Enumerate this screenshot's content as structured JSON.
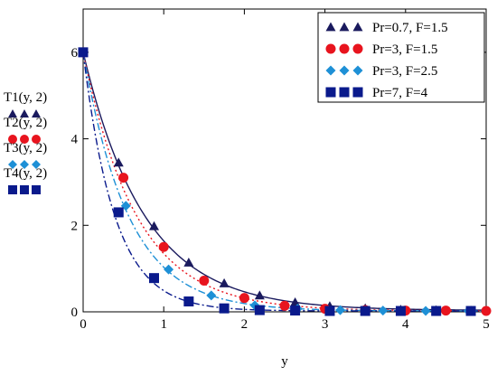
{
  "chart_data": {
    "type": "line",
    "xlabel": "y",
    "xlim": [
      0,
      5
    ],
    "ylim": [
      0,
      7
    ],
    "xticks": [
      "0",
      "1",
      "2",
      "3",
      "4",
      "5"
    ],
    "yticks": [
      "0",
      "2",
      "4",
      "6"
    ],
    "grid": false,
    "legend_position": "top-right",
    "series": [
      {
        "name": "Pr=0.7, F=1.5",
        "axis_label": "T1(y, 2)",
        "color": "#1a1a5e",
        "marker": "triangle",
        "line": "solid",
        "x": [
          0.0,
          0.44,
          0.88,
          1.31,
          1.75,
          2.19,
          2.63,
          3.06,
          3.5,
          3.94,
          4.38,
          4.81
        ],
        "y": [
          6.0,
          3.45,
          1.98,
          1.14,
          0.66,
          0.38,
          0.22,
          0.13,
          0.08,
          0.05,
          0.04,
          0.03
        ]
      },
      {
        "name": "Pr=3, F=1.5",
        "axis_label": "T2(y, 2)",
        "color": "#e8141e",
        "marker": "circle",
        "line": "dotted",
        "x": [
          0.0,
          0.5,
          1.0,
          1.5,
          2.0,
          2.5,
          3.0,
          3.5,
          4.0,
          4.5,
          5.0
        ],
        "y": [
          6.0,
          3.1,
          1.5,
          0.72,
          0.32,
          0.14,
          0.07,
          0.04,
          0.03,
          0.03,
          0.02
        ]
      },
      {
        "name": "Pr=3, F=2.5",
        "axis_label": "T3(y, 2)",
        "color": "#1e90d6",
        "marker": "diamond",
        "line": "dash-dot",
        "x": [
          0.0,
          0.53,
          1.06,
          1.59,
          2.13,
          2.66,
          3.19,
          3.72,
          4.25,
          4.78
        ],
        "y": [
          6.0,
          2.45,
          0.98,
          0.38,
          0.15,
          0.07,
          0.04,
          0.03,
          0.02,
          0.02
        ]
      },
      {
        "name": "Pr=7, F=4",
        "axis_label": "T4(y, 2)",
        "color": "#0a1a8c",
        "marker": "square",
        "line": "dash-dot",
        "x": [
          0.0,
          0.44,
          0.88,
          1.31,
          1.75,
          2.19,
          2.63,
          3.06,
          3.5,
          3.94,
          4.38,
          4.81
        ],
        "y": [
          6.0,
          2.3,
          0.78,
          0.24,
          0.08,
          0.04,
          0.03,
          0.02,
          0.02,
          0.02,
          0.02,
          0.02
        ]
      }
    ]
  }
}
